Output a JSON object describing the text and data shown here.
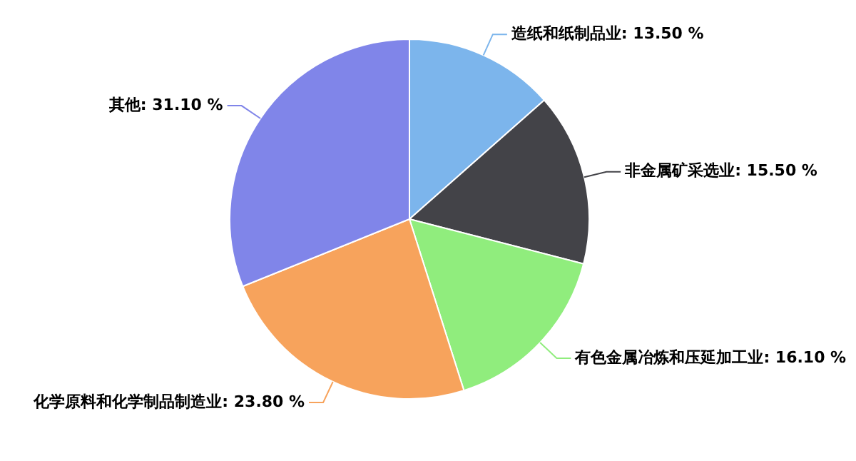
{
  "chart_data": {
    "type": "pie",
    "categories": [
      "造纸和纸制品业",
      "非金属矿采选业",
      "有色金属冶炼和压延加工业",
      "化学原料和化学制品制造业",
      "其他"
    ],
    "values": [
      13.5,
      15.5,
      16.1,
      23.8,
      31.1
    ],
    "value_labels": [
      "13.50 %",
      "15.50 %",
      "16.10 %",
      "23.80 %",
      "31.10 %"
    ],
    "colors": [
      "#7cb5ec",
      "#434348",
      "#90ed7d",
      "#f7a35c",
      "#8085e9"
    ],
    "legend": false
  }
}
